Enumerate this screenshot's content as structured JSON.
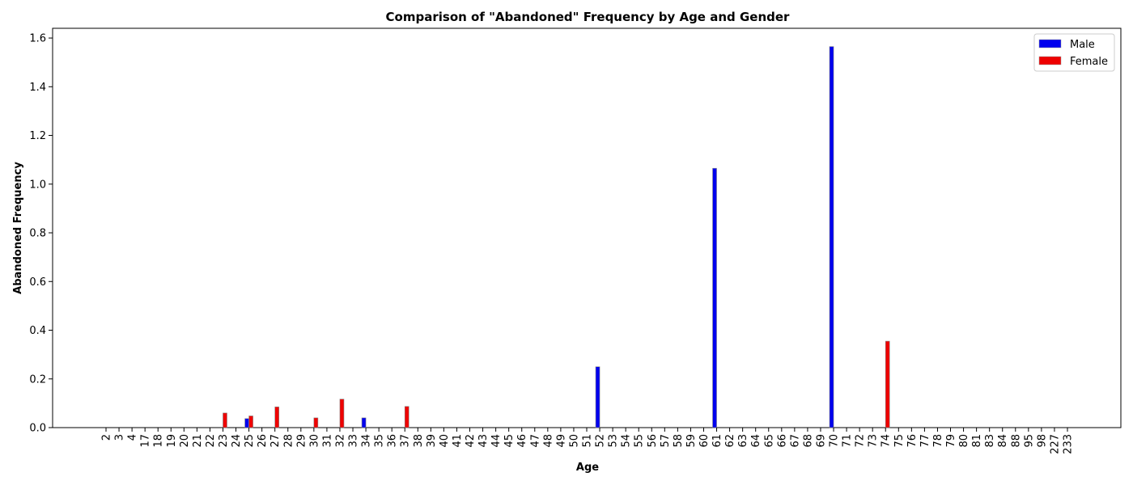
{
  "chart_data": {
    "type": "bar",
    "title": "Comparison of \"Abandoned\" Frequency by Age and Gender",
    "xlabel": "Age",
    "ylabel": "Abandoned Frequency",
    "ylim": [
      0,
      1.64
    ],
    "yticks": [
      "0.0",
      "0.2",
      "0.4",
      "0.6",
      "0.8",
      "1.0",
      "1.2",
      "1.4",
      "1.6"
    ],
    "categories": [
      "2",
      "3",
      "4",
      "17",
      "18",
      "19",
      "20",
      "21",
      "22",
      "23",
      "24",
      "25",
      "26",
      "27",
      "28",
      "29",
      "30",
      "31",
      "32",
      "33",
      "34",
      "35",
      "36",
      "37",
      "38",
      "39",
      "40",
      "41",
      "42",
      "43",
      "44",
      "45",
      "46",
      "47",
      "48",
      "49",
      "50",
      "51",
      "52",
      "53",
      "54",
      "55",
      "56",
      "57",
      "58",
      "59",
      "60",
      "61",
      "62",
      "63",
      "64",
      "65",
      "66",
      "67",
      "68",
      "69",
      "70",
      "71",
      "72",
      "73",
      "74",
      "75",
      "76",
      "77",
      "78",
      "79",
      "80",
      "81",
      "83",
      "84",
      "88",
      "95",
      "98",
      "227",
      "233"
    ],
    "series": [
      {
        "name": "Male",
        "color": "#0000ee",
        "values": [
          0,
          0,
          0,
          0,
          0,
          0,
          0,
          0,
          0,
          0,
          0,
          0.037,
          0,
          0,
          0,
          0,
          0,
          0,
          0,
          0,
          0.04,
          0,
          0,
          0,
          0,
          0,
          0,
          0,
          0,
          0,
          0,
          0,
          0,
          0,
          0,
          0,
          0,
          0,
          0.25,
          0,
          0,
          0,
          0,
          0,
          0,
          0,
          0,
          1.065,
          0,
          0,
          0,
          0,
          0,
          0,
          0,
          0,
          1.565,
          0,
          0,
          0,
          0,
          0,
          0,
          0,
          0,
          0,
          0,
          0,
          0,
          0,
          0,
          0,
          0,
          0,
          0
        ]
      },
      {
        "name": "Female",
        "color": "#ee0000",
        "values": [
          0,
          0,
          0,
          0,
          0,
          0,
          0,
          0,
          0,
          0.06,
          0,
          0.048,
          0,
          0.085,
          0,
          0,
          0.04,
          0,
          0.117,
          0,
          0,
          0,
          0,
          0.087,
          0,
          0,
          0,
          0,
          0,
          0,
          0,
          0,
          0,
          0,
          0,
          0,
          0,
          0,
          0,
          0,
          0,
          0,
          0,
          0,
          0,
          0,
          0,
          0,
          0,
          0,
          0,
          0,
          0,
          0,
          0,
          0,
          0,
          0,
          0,
          0,
          0.355,
          0,
          0,
          0,
          0,
          0,
          0,
          0,
          0,
          0,
          0,
          0,
          0,
          0,
          0
        ]
      }
    ],
    "legend_position": "top-right",
    "grid": false
  }
}
